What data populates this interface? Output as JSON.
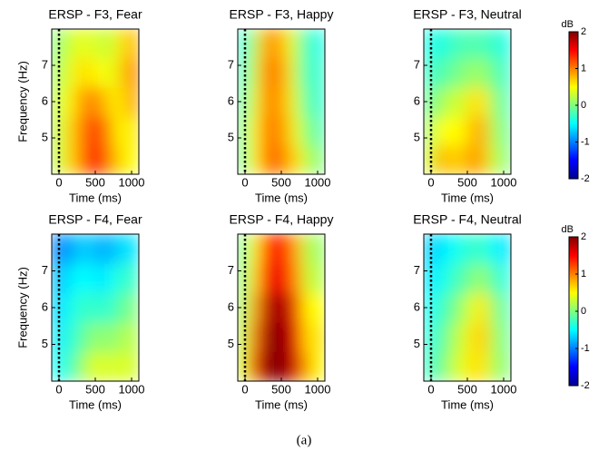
{
  "chart_data": [
    {
      "type": "heatmap",
      "title": "ERSP - F3, Fear",
      "xlabel": "Time (ms)",
      "ylabel": "Frequency (Hz)",
      "x": [
        -25,
        125,
        275,
        425,
        575,
        725,
        875,
        1025
      ],
      "y": [
        4.4,
        5.2,
        6.0,
        6.8,
        7.6
      ],
      "z": [
        [
          0.2,
          0.6,
          0.9,
          1.3,
          1.4,
          0.9,
          0.6,
          0.5
        ],
        [
          0.2,
          0.6,
          0.9,
          1.2,
          1.3,
          0.8,
          0.5,
          0.6
        ],
        [
          0.2,
          0.5,
          0.8,
          1.0,
          0.9,
          0.6,
          0.6,
          0.9
        ],
        [
          0.1,
          0.4,
          0.6,
          0.6,
          0.5,
          0.4,
          0.7,
          1.0
        ],
        [
          0.0,
          0.3,
          0.4,
          0.4,
          0.3,
          0.3,
          0.6,
          0.8
        ]
      ],
      "xlim": [
        -100,
        1100
      ],
      "ylim": [
        4,
        8
      ],
      "xticks": [
        0,
        500,
        1000
      ],
      "yticks": [
        5,
        6,
        7
      ],
      "zlim": [
        -2,
        2
      ],
      "colormap": "jet",
      "event_marker": 0
    },
    {
      "type": "heatmap",
      "title": "ERSP - F3, Happy",
      "xlabel": "Time (ms)",
      "x": [
        -25,
        125,
        275,
        425,
        575,
        725,
        875,
        1025
      ],
      "y": [
        4.4,
        5.2,
        6.0,
        6.8,
        7.6
      ],
      "z": [
        [
          -0.1,
          0.5,
          1.0,
          1.1,
          0.9,
          0.6,
          0.2,
          0.0
        ],
        [
          -0.1,
          0.5,
          1.0,
          1.0,
          0.8,
          0.4,
          0.0,
          -0.2
        ],
        [
          -0.2,
          0.4,
          0.9,
          1.0,
          0.7,
          0.3,
          -0.2,
          -0.3
        ],
        [
          -0.3,
          0.3,
          0.9,
          1.1,
          0.7,
          0.2,
          -0.3,
          -0.3
        ],
        [
          -0.4,
          0.2,
          0.8,
          1.0,
          0.6,
          0.2,
          -0.3,
          -0.4
        ]
      ],
      "xlim": [
        -100,
        1100
      ],
      "ylim": [
        4,
        8
      ],
      "xticks": [
        0,
        500,
        1000
      ],
      "yticks": [
        5,
        6,
        7
      ],
      "zlim": [
        -2,
        2
      ],
      "colormap": "jet",
      "event_marker": 0
    },
    {
      "type": "heatmap",
      "title": "ERSP - F3, Neutral",
      "xlabel": "Time (ms)",
      "x": [
        -25,
        125,
        275,
        425,
        575,
        725,
        875,
        1025
      ],
      "y": [
        4.4,
        5.2,
        6.0,
        6.8,
        7.6
      ],
      "z": [
        [
          0.3,
          0.8,
          0.7,
          0.7,
          0.9,
          0.8,
          0.3,
          0.0
        ],
        [
          0.1,
          0.5,
          0.5,
          0.5,
          0.8,
          0.8,
          0.2,
          -0.1
        ],
        [
          -0.1,
          0.1,
          0.3,
          0.3,
          0.6,
          0.6,
          0.1,
          -0.2
        ],
        [
          -0.3,
          -0.2,
          -0.1,
          0.0,
          0.1,
          0.1,
          -0.1,
          -0.3
        ],
        [
          -0.4,
          -0.4,
          -0.3,
          -0.2,
          -0.2,
          -0.2,
          -0.3,
          -0.4
        ]
      ],
      "xlim": [
        -100,
        1100
      ],
      "ylim": [
        4,
        8
      ],
      "xticks": [
        0,
        500,
        1000
      ],
      "yticks": [
        5,
        6,
        7
      ],
      "zlim": [
        -2,
        2
      ],
      "colormap": "jet",
      "event_marker": 0,
      "colorbar": {
        "label": "dB",
        "ticks": [
          2,
          1,
          0,
          -1,
          -2
        ]
      }
    },
    {
      "type": "heatmap",
      "title": "ERSP - F4, Fear",
      "xlabel": "Time (ms)",
      "ylabel": "Frequency (Hz)",
      "x": [
        -25,
        125,
        275,
        425,
        575,
        725,
        875,
        1025
      ],
      "y": [
        4.4,
        5.2,
        6.0,
        6.8,
        7.6
      ],
      "z": [
        [
          -0.5,
          -0.3,
          0.0,
          0.3,
          0.4,
          0.3,
          0.4,
          0.3
        ],
        [
          -0.6,
          -0.4,
          -0.2,
          0.0,
          0.1,
          0.0,
          0.2,
          0.2
        ],
        [
          -0.7,
          -0.5,
          -0.3,
          -0.3,
          -0.3,
          -0.3,
          -0.1,
          0.0
        ],
        [
          -0.8,
          -0.6,
          -0.5,
          -0.5,
          -0.6,
          -0.5,
          -0.3,
          -0.3
        ],
        [
          -1.0,
          -0.9,
          -0.7,
          -0.7,
          -0.8,
          -0.8,
          -0.6,
          -0.6
        ]
      ],
      "xlim": [
        -100,
        1100
      ],
      "ylim": [
        4,
        8
      ],
      "xticks": [
        0,
        500,
        1000
      ],
      "yticks": [
        5,
        6,
        7
      ],
      "zlim": [
        -2,
        2
      ],
      "colormap": "jet",
      "event_marker": 0
    },
    {
      "type": "heatmap",
      "title": "ERSP - F4, Happy",
      "xlabel": "Time (ms)",
      "x": [
        -25,
        125,
        275,
        425,
        575,
        725,
        875,
        1025
      ],
      "y": [
        4.4,
        5.2,
        6.0,
        6.8,
        7.6
      ],
      "z": [
        [
          0.3,
          1.2,
          1.9,
          2.0,
          1.9,
          1.6,
          0.8,
          0.5
        ],
        [
          0.2,
          1.0,
          1.8,
          2.0,
          1.9,
          1.5,
          0.6,
          0.6
        ],
        [
          0.1,
          0.8,
          1.7,
          1.9,
          1.8,
          1.2,
          0.5,
          0.5
        ],
        [
          0.0,
          0.6,
          1.4,
          1.6,
          1.4,
          0.9,
          0.3,
          0.2
        ],
        [
          -0.1,
          0.5,
          1.2,
          1.4,
          1.3,
          0.8,
          0.2,
          0.1
        ]
      ],
      "xlim": [
        -100,
        1100
      ],
      "ylim": [
        4,
        8
      ],
      "xticks": [
        0,
        500,
        1000
      ],
      "yticks": [
        5,
        6,
        7
      ],
      "zlim": [
        -2,
        2
      ],
      "colormap": "jet",
      "event_marker": 0
    },
    {
      "type": "heatmap",
      "title": "ERSP - F4, Neutral",
      "xlabel": "Time (ms)",
      "x": [
        -25,
        125,
        275,
        425,
        575,
        725,
        875,
        1025
      ],
      "y": [
        4.4,
        5.2,
        6.0,
        6.8,
        7.6
      ],
      "z": [
        [
          -0.3,
          -0.1,
          0.2,
          0.4,
          0.6,
          0.6,
          0.2,
          0.0
        ],
        [
          -0.4,
          -0.2,
          0.1,
          0.3,
          0.6,
          0.7,
          0.2,
          -0.1
        ],
        [
          -0.5,
          -0.3,
          -0.1,
          0.1,
          0.4,
          0.6,
          0.1,
          -0.2
        ],
        [
          -0.6,
          -0.5,
          -0.3,
          -0.2,
          0.0,
          0.1,
          -0.2,
          -0.4
        ],
        [
          -0.7,
          -0.6,
          -0.5,
          -0.4,
          -0.3,
          -0.3,
          -0.5,
          -0.6
        ]
      ],
      "xlim": [
        -100,
        1100
      ],
      "ylim": [
        4,
        8
      ],
      "xticks": [
        0,
        500,
        1000
      ],
      "yticks": [
        5,
        6,
        7
      ],
      "zlim": [
        -2,
        2
      ],
      "colormap": "jet",
      "event_marker": 0,
      "colorbar": {
        "label": "dB",
        "ticks": [
          2,
          1,
          0,
          -1,
          -2
        ]
      }
    }
  ],
  "caption": "(a)"
}
